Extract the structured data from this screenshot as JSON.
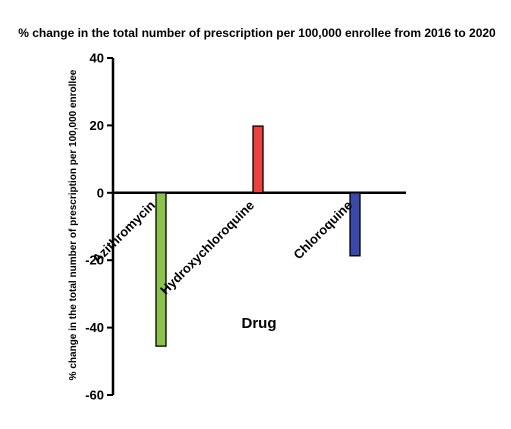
{
  "chart_data": {
    "type": "bar",
    "title": "% change in the total number of prescription per 100,000 enrollee from 2016 to 2020",
    "xlabel": "Drug",
    "ylabel": "% change in the total number of prescription per 100,000 enrollee",
    "categories": [
      "Azithromycin",
      "Hydroxychloroquine",
      "Chloroquine"
    ],
    "values": [
      -45.5,
      19.8,
      -18.7
    ],
    "colors": [
      "#8bc34a",
      "#ef4040",
      "#3949ab"
    ],
    "ylim": [
      -60,
      40
    ],
    "yticks": [
      40,
      20,
      0,
      -20,
      -40,
      -60
    ],
    "grid": false
  }
}
